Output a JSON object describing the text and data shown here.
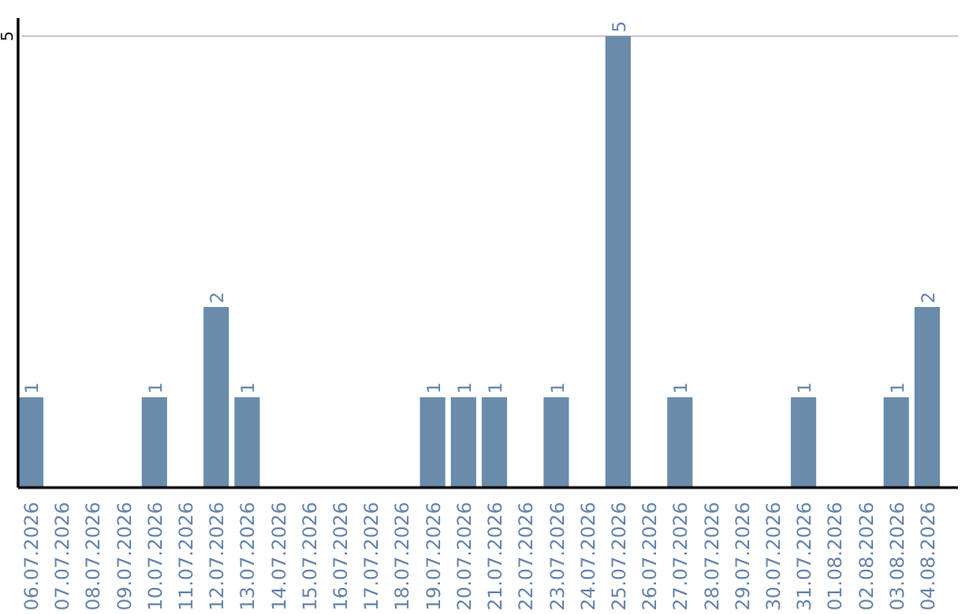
{
  "chart_data": {
    "type": "bar",
    "categories": [
      "06.07.2026",
      "07.07.2026",
      "08.07.2026",
      "09.07.2026",
      "10.07.2026",
      "11.07.2026",
      "12.07.2026",
      "13.07.2026",
      "14.07.2026",
      "15.07.2026",
      "16.07.2026",
      "17.07.2026",
      "18.07.2026",
      "19.07.2026",
      "20.07.2026",
      "21.07.2026",
      "22.07.2026",
      "23.07.2026",
      "24.07.2026",
      "25.07.2026",
      "26.07.2026",
      "27.07.2026",
      "28.07.2026",
      "29.07.2026",
      "30.07.2026",
      "31.07.2026",
      "01.08.2026",
      "02.08.2026",
      "03.08.2026",
      "04.08.2026"
    ],
    "values": [
      1,
      0,
      0,
      0,
      1,
      0,
      2,
      1,
      0,
      0,
      0,
      0,
      0,
      1,
      1,
      1,
      0,
      1,
      0,
      5,
      0,
      1,
      0,
      0,
      0,
      1,
      0,
      0,
      1,
      2
    ],
    "color": "#6a8caa",
    "value_labels": [
      "1",
      null,
      null,
      null,
      "1",
      null,
      "2",
      "1",
      null,
      null,
      null,
      null,
      null,
      "1",
      "1",
      "1",
      null,
      "1",
      null,
      "5",
      null,
      "1",
      null,
      null,
      null,
      "1",
      null,
      null,
      "1",
      "2"
    ],
    "ylim": [
      0,
      5
    ],
    "yticks": [
      5
    ],
    "ref_lines": [
      {
        "axis": "y",
        "value": 5,
        "color": "#cccccc"
      }
    ]
  }
}
